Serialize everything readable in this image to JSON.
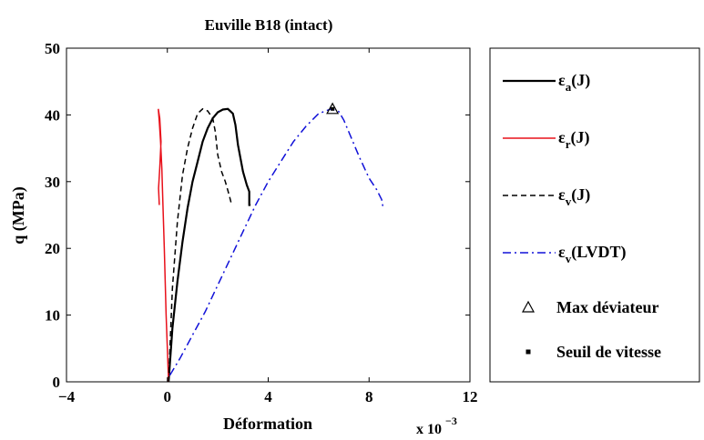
{
  "chart_data": {
    "type": "line",
    "title": "Euville B18 (intact)",
    "xlabel": "Déformation",
    "ylabel": "q (MPa)",
    "x_multiplier_label": "x 10",
    "x_multiplier_exponent": "−3",
    "xlim": [
      -4,
      12
    ],
    "ylim": [
      0,
      50
    ],
    "xticks": [
      -4,
      0,
      4,
      8,
      12
    ],
    "xtick_labels": [
      "−4",
      "0",
      "4",
      "8",
      "12"
    ],
    "yticks": [
      0,
      10,
      20,
      30,
      40,
      50
    ],
    "ytick_labels": [
      "0",
      "10",
      "20",
      "30",
      "40",
      "50"
    ],
    "grid": false,
    "legend_position": "outside-right",
    "series": [
      {
        "key": "ea",
        "name": "ε",
        "subscript": "a",
        "suffix": "(J)",
        "color": "#000000",
        "style": "solid",
        "x": [
          0.05,
          0.2,
          0.4,
          0.6,
          0.8,
          1.0,
          1.2,
          1.4,
          1.6,
          1.8,
          2.0,
          2.2,
          2.4,
          2.6,
          2.7,
          2.8,
          3.0,
          3.15,
          3.25,
          3.25,
          3.3
        ],
        "y": [
          0,
          8,
          15,
          21,
          26,
          30,
          33,
          36,
          38,
          39.5,
          40.4,
          40.8,
          40.9,
          40.2,
          38.5,
          35.5,
          31.5,
          29.5,
          28.5,
          26.5,
          26.5
        ]
      },
      {
        "key": "er",
        "name": "ε",
        "subscript": "r",
        "suffix": "(J)",
        "color": "#e8101a",
        "style": "solid",
        "x": [
          0.05,
          -0.05,
          -0.12,
          -0.18,
          -0.22,
          -0.27,
          -0.32,
          -0.36,
          -0.3,
          -0.25,
          -0.3,
          -0.35,
          -0.32
        ],
        "y": [
          0,
          10,
          20,
          27,
          32,
          36,
          39,
          40.9,
          39.5,
          36,
          32,
          29,
          26.5
        ]
      },
      {
        "key": "ev",
        "name": "ε",
        "subscript": "v",
        "suffix": "(J)",
        "color": "#000000",
        "style": "dashed",
        "x": [
          0.05,
          0.2,
          0.4,
          0.6,
          0.8,
          1.0,
          1.2,
          1.4,
          1.6,
          1.8,
          1.9,
          2.0,
          2.15,
          2.3,
          2.45,
          2.55
        ],
        "y": [
          0,
          14,
          24,
          31,
          35,
          38,
          40.2,
          40.9,
          40.6,
          39.5,
          37.5,
          34,
          31.5,
          30,
          28,
          26.5
        ]
      },
      {
        "key": "evl",
        "name": "ε",
        "subscript": "v",
        "suffix": "(LVDT)",
        "color": "#1010d8",
        "style": "dashdot",
        "x": [
          0.1,
          0.5,
          1.0,
          1.5,
          2.0,
          2.5,
          3.0,
          3.5,
          4.0,
          4.5,
          5.0,
          5.5,
          6.0,
          6.5,
          6.8,
          7.0,
          7.3,
          7.6,
          8.0,
          8.3,
          8.5,
          8.55
        ],
        "y": [
          1,
          3.5,
          7,
          10.5,
          14.5,
          18.5,
          22.5,
          26.5,
          30,
          33,
          36,
          38.3,
          40.2,
          40.9,
          40.5,
          39.2,
          36.5,
          33.8,
          30.5,
          28.8,
          27.3,
          26.2
        ]
      }
    ],
    "markers": [
      {
        "key": "max",
        "label": "Max déviateur",
        "symbol": "triangle",
        "x": 6.55,
        "y": 40.9
      },
      {
        "key": "seuil",
        "label": "Seuil de vitesse",
        "symbol": "square",
        "x": 6.55,
        "y": 40.9
      }
    ]
  }
}
